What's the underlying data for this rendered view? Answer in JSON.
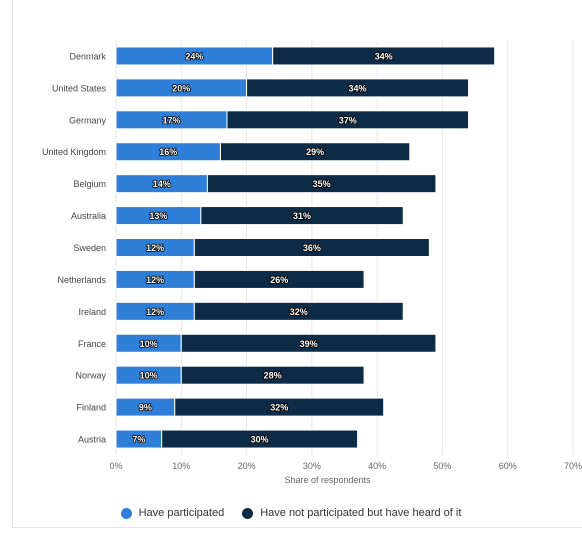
{
  "chart_data": {
    "type": "bar",
    "orientation": "horizontal",
    "stacked": true,
    "categories": [
      "Denmark",
      "United States",
      "Germany",
      "United Kingdom",
      "Belgium",
      "Australia",
      "Sweden",
      "Netherlands",
      "Ireland",
      "France",
      "Norway",
      "Finland",
      "Austria"
    ],
    "series": [
      {
        "name": "Have participated",
        "color": "#2f7ed8",
        "values": [
          24,
          20,
          17,
          16,
          14,
          13,
          12,
          12,
          12,
          10,
          10,
          9,
          7
        ]
      },
      {
        "name": "Have not participated but have heard of it",
        "color": "#0d2a47",
        "values": [
          34,
          34,
          37,
          29,
          35,
          31,
          36,
          26,
          32,
          39,
          28,
          32,
          30
        ]
      }
    ],
    "xlabel": "Share of respondents",
    "ylabel": "",
    "xlim": [
      0,
      70
    ],
    "xticks": [
      "0%",
      "10%",
      "20%",
      "30%",
      "40%",
      "50%",
      "60%",
      "70%"
    ],
    "value_suffix": "%",
    "grid": true,
    "legend_position": "bottom"
  }
}
